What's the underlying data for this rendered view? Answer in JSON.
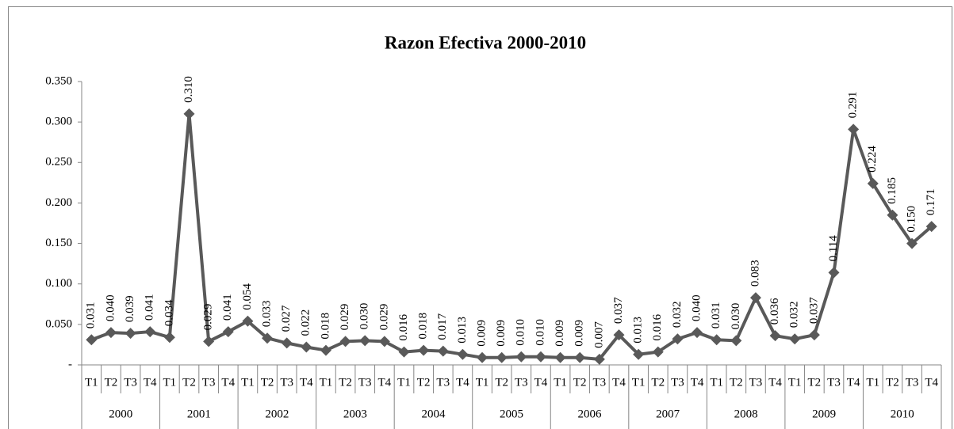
{
  "chart_data": {
    "type": "line",
    "title": "Razon Efectiva 2000-2010",
    "categories": [
      "T1",
      "T2",
      "T3",
      "T4",
      "T1",
      "T2",
      "T3",
      "T4",
      "T1",
      "T2",
      "T3",
      "T4",
      "T1",
      "T2",
      "T3",
      "T4",
      "T1",
      "T2",
      "T3",
      "T4",
      "T1",
      "T2",
      "T3",
      "T4",
      "T1",
      "T2",
      "T3",
      "T4",
      "T1",
      "T2",
      "T3",
      "T4",
      "T1",
      "T2",
      "T3",
      "T4",
      "T1",
      "T2",
      "T3",
      "T4",
      "T1",
      "T2",
      "T3",
      "T4"
    ],
    "groups": [
      "2000",
      "2001",
      "2002",
      "2003",
      "2004",
      "2005",
      "2006",
      "2007",
      "2008",
      "2009",
      "2010"
    ],
    "values": [
      0.031,
      0.04,
      0.039,
      0.041,
      0.034,
      0.31,
      0.029,
      0.041,
      0.054,
      0.033,
      0.027,
      0.022,
      0.018,
      0.029,
      0.03,
      0.029,
      0.016,
      0.018,
      0.017,
      0.013,
      0.009,
      0.009,
      0.01,
      0.01,
      0.009,
      0.009,
      0.007,
      0.037,
      0.013,
      0.016,
      0.032,
      0.04,
      0.031,
      0.03,
      0.083,
      0.036,
      0.032,
      0.037,
      0.114,
      0.291,
      0.224,
      0.185,
      0.15,
      0.171
    ],
    "value_labels": [
      "0.031",
      "0.040",
      "0.039",
      "0.041",
      "0.034",
      "0.310",
      "0.029",
      "0.041",
      "0.054",
      "0.033",
      "0.027",
      "0.022",
      "0.018",
      "0.029",
      "0.030",
      "0.029",
      "0.016",
      "0.018",
      "0.017",
      "0.013",
      "0.009",
      "0.009",
      "0.010",
      "0.010",
      "0.009",
      "0.009",
      "0.007",
      "0.037",
      "0.013",
      "0.016",
      "0.032",
      "0.040",
      "0.031",
      "0.030",
      "0.083",
      "0.036",
      "0.032",
      "0.037",
      "0.114",
      "0.291",
      "0.224",
      "0.185",
      "0.150",
      "0.171"
    ],
    "color": "#595959",
    "ylim": [
      0,
      0.35
    ],
    "yticks": [
      {
        "value": 0,
        "label": "-"
      },
      {
        "value": 0.05,
        "label": "0.050"
      },
      {
        "value": 0.1,
        "label": "0.100"
      },
      {
        "value": 0.15,
        "label": "0.150"
      },
      {
        "value": 0.2,
        "label": "0.200"
      },
      {
        "value": 0.25,
        "label": "0.250"
      },
      {
        "value": 0.3,
        "label": "0.300"
      },
      {
        "value": 0.35,
        "label": "0.350"
      }
    ],
    "grid": false
  }
}
